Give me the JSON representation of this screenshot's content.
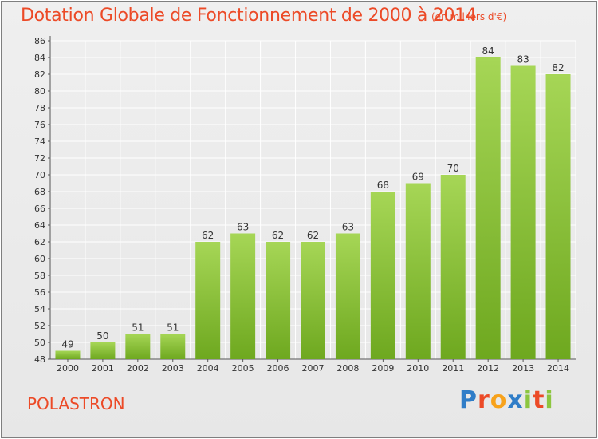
{
  "header": {
    "title": "Dotation Globale de Fonctionnement de 2000 à 2014",
    "subtitle": "(en milliers d'€)"
  },
  "footer": {
    "commune": "POLASTRON",
    "logo_text": "Proxiti",
    "logo_letters": [
      {
        "char": "P",
        "color": "#2f7dc8"
      },
      {
        "char": "r",
        "color": "#ec4a27"
      },
      {
        "char": "o",
        "color": "#f7a21b"
      },
      {
        "char": "x",
        "color": "#2f7dc8"
      },
      {
        "char": "i",
        "color": "#8cc63f"
      },
      {
        "char": "t",
        "color": "#ec4a27"
      },
      {
        "char": "i",
        "color": "#8cc63f"
      }
    ]
  },
  "colors": {
    "title": "#ec4a27",
    "bar_light": "#a6d656",
    "bar_dark": "#6ea81f",
    "grid": "#ffffff",
    "axis_text": "#333333"
  },
  "chart_data": {
    "type": "bar",
    "categories": [
      "2000",
      "2001",
      "2002",
      "2003",
      "2004",
      "2005",
      "2006",
      "2007",
      "2008",
      "2009",
      "2010",
      "2011",
      "2012",
      "2013",
      "2014"
    ],
    "values": [
      49,
      50,
      51,
      51,
      62,
      63,
      62,
      62,
      63,
      68,
      69,
      70,
      84,
      83,
      82
    ],
    "title": "Dotation Globale de Fonctionnement de 2000 à 2014",
    "ylim": [
      48,
      86
    ],
    "yticks": [
      48,
      50,
      52,
      54,
      56,
      58,
      60,
      62,
      64,
      66,
      68,
      70,
      72,
      74,
      76,
      78,
      80,
      82,
      84,
      86
    ],
    "grid": true
  }
}
